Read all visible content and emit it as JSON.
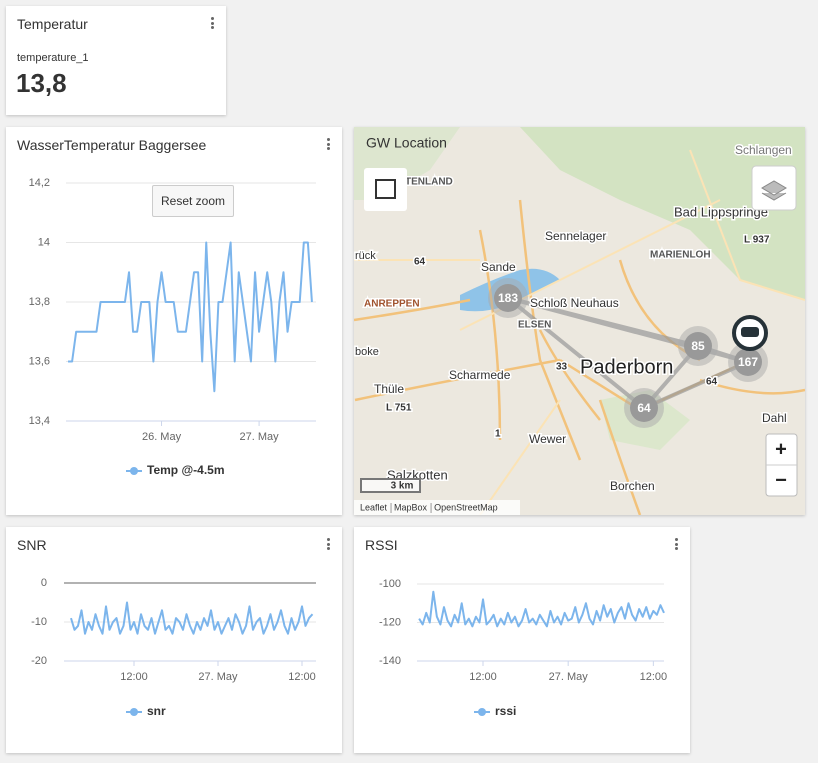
{
  "widget": {
    "title": "Temperatur",
    "label": "temperature_1",
    "value": "13,8"
  },
  "reset_zoom": "Reset zoom",
  "chart_data": [
    {
      "type": "line",
      "title": "WasserTemperatur Baggersee",
      "x": [
        1,
        2,
        3,
        4,
        5,
        6,
        7,
        8,
        9,
        10,
        11,
        12,
        13,
        14,
        15,
        16,
        17,
        18,
        19,
        20,
        21,
        22,
        23,
        24,
        25,
        26,
        27,
        28,
        29,
        30,
        31,
        32,
        33,
        34,
        35,
        36,
        37,
        38,
        39,
        40,
        41,
        42,
        43,
        44,
        45,
        46,
        47,
        48,
        49,
        50,
        51,
        52,
        53,
        54,
        55,
        56,
        57,
        58,
        59,
        60,
        61
      ],
      "series": [
        {
          "name": "Temp @-4.5m",
          "color": "#7cb5ec",
          "values": [
            13.6,
            13.6,
            13.7,
            13.7,
            13.7,
            13.7,
            13.7,
            13.7,
            13.8,
            13.8,
            13.8,
            13.8,
            13.8,
            13.8,
            13.8,
            13.9,
            13.7,
            13.7,
            13.8,
            13.8,
            13.8,
            13.6,
            13.8,
            13.9,
            13.8,
            13.8,
            13.8,
            13.7,
            13.7,
            13.7,
            13.8,
            13.9,
            13.9,
            13.6,
            14,
            13.7,
            13.5,
            13.8,
            13.8,
            13.9,
            14,
            13.6,
            13.9,
            13.8,
            13.7,
            13.6,
            13.9,
            13.7,
            13.8,
            13.9,
            13.8,
            13.6,
            13.8,
            13.9,
            13.7,
            13.8,
            13.8,
            13.8,
            14,
            14,
            13.8
          ]
        }
      ],
      "xlim": [
        0.5,
        62
      ],
      "xticks": [
        {
          "value": 24,
          "label": "26. May"
        },
        {
          "value": 48,
          "label": "27. May"
        }
      ],
      "ylim": [
        13.4,
        14.2
      ],
      "yticks": [
        {
          "value": 13.4,
          "label": "13,4"
        },
        {
          "value": 13.6,
          "label": "13,6"
        },
        {
          "value": 13.8,
          "label": "13,8"
        },
        14,
        {
          "value": 14.2,
          "label": "14,2"
        }
      ],
      "grid": true
    },
    {
      "type": "line",
      "title": "SNR",
      "x": [
        27,
        27.5,
        28,
        28.5,
        29,
        29.5,
        30,
        30.5,
        31,
        31.5,
        32,
        32.5,
        33,
        33.5,
        34,
        34.5,
        35,
        35.5,
        36,
        36.5,
        37,
        37.5,
        38,
        38.5,
        39,
        39.5,
        40,
        40.5,
        41,
        41.5,
        42,
        42.5,
        43,
        43.5,
        44,
        44.5,
        45,
        45.5,
        46,
        46.5,
        47,
        47.5,
        48,
        48.5,
        49,
        49.5,
        50,
        50.5,
        51,
        51.5,
        52,
        52.5,
        53,
        53.5,
        54,
        54.5,
        55,
        55.5,
        56,
        56.5,
        57,
        57.5,
        58,
        58.5,
        59,
        59.5,
        60,
        60.5,
        61,
        61.5
      ],
      "series": [
        {
          "name": "snr",
          "color": "#7cb5ec",
          "values": [
            -9,
            -12,
            -11,
            -7,
            -13,
            -10,
            -12,
            -8,
            -11,
            -13,
            -6,
            -12,
            -10,
            -9,
            -13,
            -11,
            -5,
            -12,
            -10,
            -13,
            -8,
            -11,
            -12,
            -9,
            -13,
            -10,
            -7,
            -12,
            -11,
            -13,
            -9,
            -10,
            -12,
            -8,
            -11,
            -13,
            -10,
            -12,
            -9,
            -11,
            -7,
            -12,
            -10,
            -13,
            -11,
            -9,
            -12,
            -8,
            -10,
            -13,
            -11,
            -6,
            -12,
            -10,
            -9,
            -13,
            -11,
            -8,
            -12,
            -10,
            -7,
            -11,
            -13,
            -9,
            -12,
            -10,
            -6,
            -11,
            -9,
            -8
          ]
        }
      ],
      "xlim": [
        26,
        62
      ],
      "xticks": [
        {
          "value": 36,
          "label": "12:00"
        },
        {
          "value": 48,
          "label": "27. May"
        },
        {
          "value": 60,
          "label": "12:00"
        }
      ],
      "ylim": [
        -20,
        0
      ],
      "yticks": [
        -20,
        -10,
        0
      ],
      "grid": true
    },
    {
      "type": "line",
      "title": "RSSI",
      "x": [
        27,
        27.5,
        28,
        28.5,
        29,
        29.5,
        30,
        30.5,
        31,
        31.5,
        32,
        32.5,
        33,
        33.5,
        34,
        34.5,
        35,
        35.5,
        36,
        36.5,
        37,
        37.5,
        38,
        38.5,
        39,
        39.5,
        40,
        40.5,
        41,
        41.5,
        42,
        42.5,
        43,
        43.5,
        44,
        44.5,
        45,
        45.5,
        46,
        46.5,
        47,
        47.5,
        48,
        48.5,
        49,
        49.5,
        50,
        50.5,
        51,
        51.5,
        52,
        52.5,
        53,
        53.5,
        54,
        54.5,
        55,
        55.5,
        56,
        56.5,
        57,
        57.5,
        58,
        58.5,
        59,
        59.5,
        60,
        60.5,
        61,
        61.5
      ],
      "series": [
        {
          "name": "rssi",
          "color": "#7cb5ec",
          "values": [
            -118,
            -121,
            -115,
            -120,
            -104,
            -117,
            -121,
            -112,
            -119,
            -122,
            -116,
            -120,
            -110,
            -121,
            -118,
            -122,
            -117,
            -120,
            -108,
            -121,
            -119,
            -116,
            -122,
            -118,
            -121,
            -115,
            -120,
            -117,
            -122,
            -119,
            -113,
            -120,
            -118,
            -121,
            -116,
            -119,
            -122,
            -114,
            -120,
            -117,
            -121,
            -115,
            -119,
            -118,
            -112,
            -120,
            -116,
            -110,
            -118,
            -121,
            -114,
            -119,
            -111,
            -117,
            -113,
            -120,
            -115,
            -112,
            -118,
            -110,
            -116,
            -119,
            -113,
            -117,
            -112,
            -118,
            -114,
            -116,
            -111,
            -115
          ]
        }
      ],
      "xlim": [
        26.7,
        61.5
      ],
      "xticks": [
        {
          "value": 36,
          "label": "12:00"
        },
        {
          "value": 48,
          "label": "27. May"
        },
        {
          "value": 60,
          "label": "12:00"
        }
      ],
      "ylim": [
        -140,
        -100
      ],
      "yticks": [
        -140,
        -120,
        -100
      ],
      "grid": true
    }
  ],
  "map": {
    "title": "GW Location",
    "labels": [
      "Schlangen",
      "Bad Lippspringe",
      "L 937",
      "Sennelager",
      "MARIENLOH",
      "TENLAND",
      "Sande",
      "64",
      "rück",
      "Schloß Neuhaus",
      "ANREPPEN",
      "ELSEN",
      "boke",
      "Paderborn",
      "33",
      "Scharmede",
      "64",
      "Thüle",
      "L 751",
      "Dahl",
      "Wewer",
      "1",
      "Salzkotten",
      "Borchen"
    ],
    "clusters": [
      183,
      85,
      167,
      64
    ],
    "scale": "3 km",
    "attribution": [
      "Leaflet",
      "MapBox",
      "OpenStreetMap"
    ],
    "zoom_in": "+",
    "zoom_out": "−"
  }
}
